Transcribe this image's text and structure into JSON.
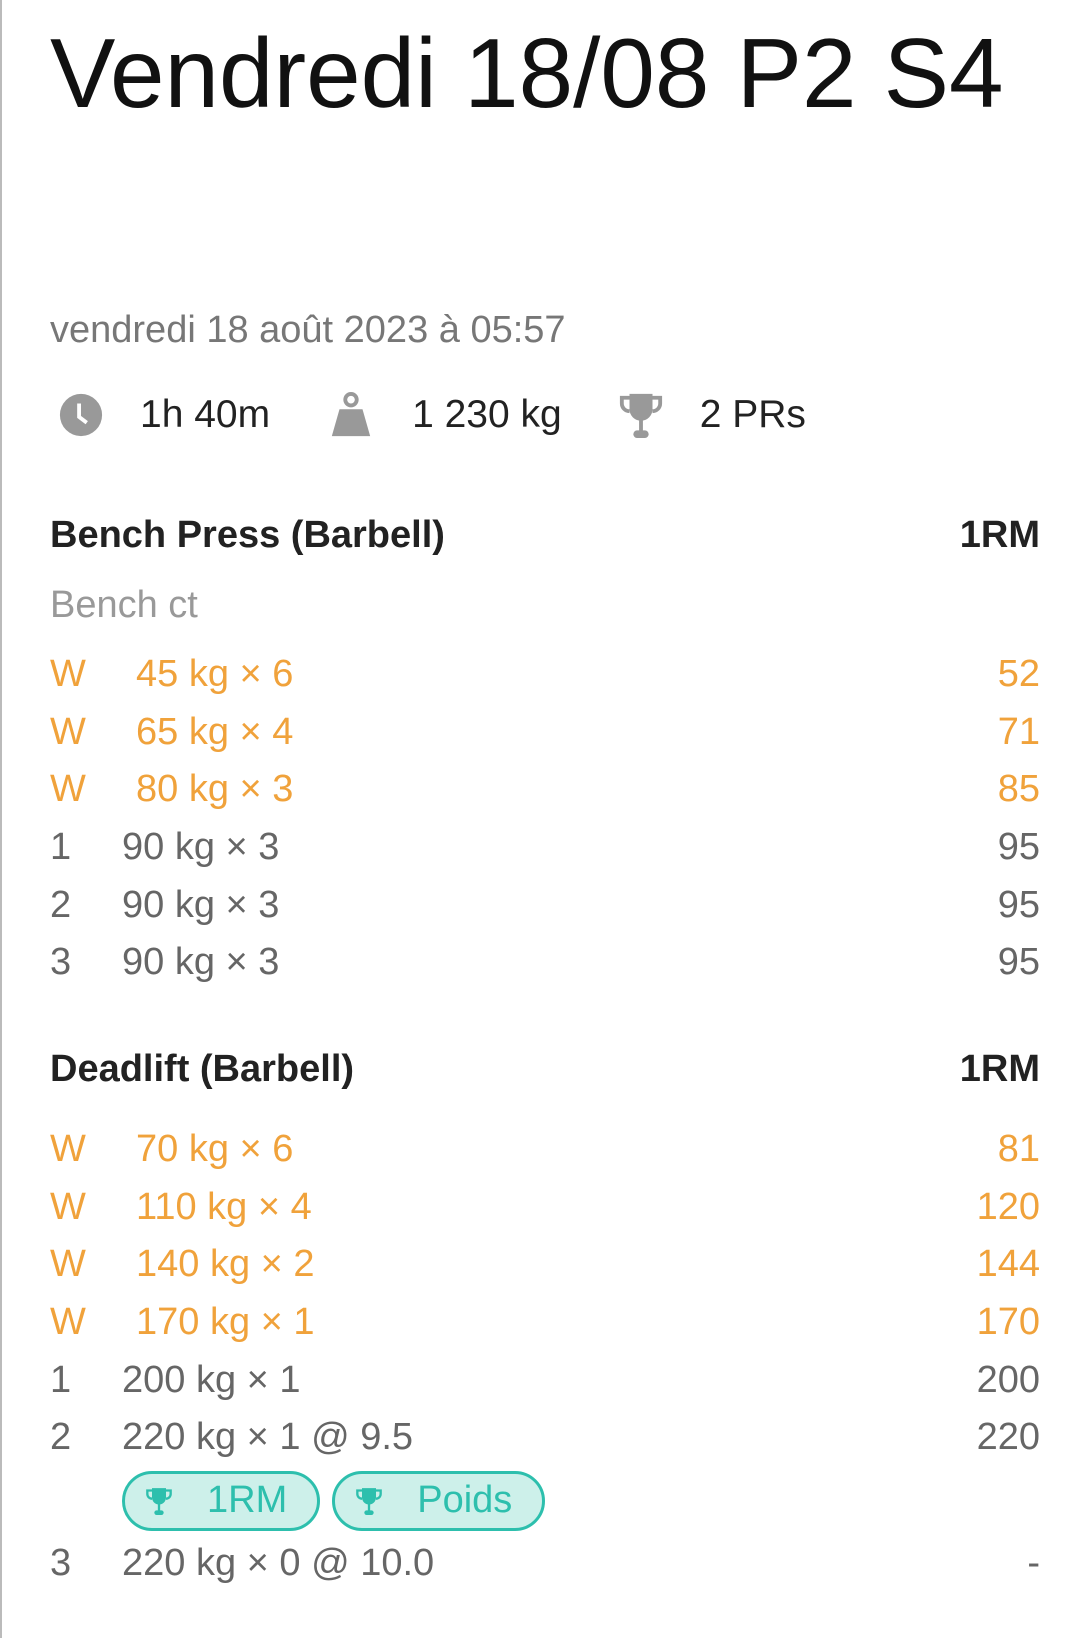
{
  "workout": {
    "title": "Vendredi 18/08 P2 S4",
    "date": "vendredi 18 août 2023 à 05:57",
    "stats": {
      "duration": "1h 40m",
      "volume": "1 230 kg",
      "prs": "2 PRs"
    }
  },
  "colors": {
    "warmup": "#F0A23B",
    "pr_accent": "#2DBFAD",
    "pr_bg": "#CDF0EA",
    "icon": "#999999"
  },
  "exercises": [
    {
      "name": "Bench Press (Barbell)",
      "metric": "1RM",
      "note": "Bench ct",
      "sets": [
        {
          "label": "W",
          "value": "45 kg × 6",
          "rm": "52"
        },
        {
          "label": "W",
          "value": "65 kg × 4",
          "rm": "71"
        },
        {
          "label": "W",
          "value": "80 kg × 3",
          "rm": "85"
        },
        {
          "label": "1",
          "value": "90 kg × 3",
          "rm": "95"
        },
        {
          "label": "2",
          "value": "90 kg × 3",
          "rm": "95"
        },
        {
          "label": "3",
          "value": "90 kg × 3",
          "rm": "95"
        }
      ]
    },
    {
      "name": "Deadlift (Barbell)",
      "metric": "1RM",
      "sets": [
        {
          "label": "W",
          "value": "70 kg × 6",
          "rm": "81"
        },
        {
          "label": "W",
          "value": "110 kg × 4",
          "rm": "120"
        },
        {
          "label": "W",
          "value": "140 kg × 2",
          "rm": "144"
        },
        {
          "label": "W",
          "value": "170 kg × 1",
          "rm": "170"
        },
        {
          "label": "1",
          "value": "200 kg × 1",
          "rm": "200"
        },
        {
          "label": "2",
          "value": "220 kg × 1 @ 9.5",
          "rm": "220",
          "badges": [
            "1RM",
            "Poids"
          ]
        },
        {
          "label": "3",
          "value": "220 kg × 0 @ 10.0",
          "rm": "-"
        }
      ]
    }
  ]
}
